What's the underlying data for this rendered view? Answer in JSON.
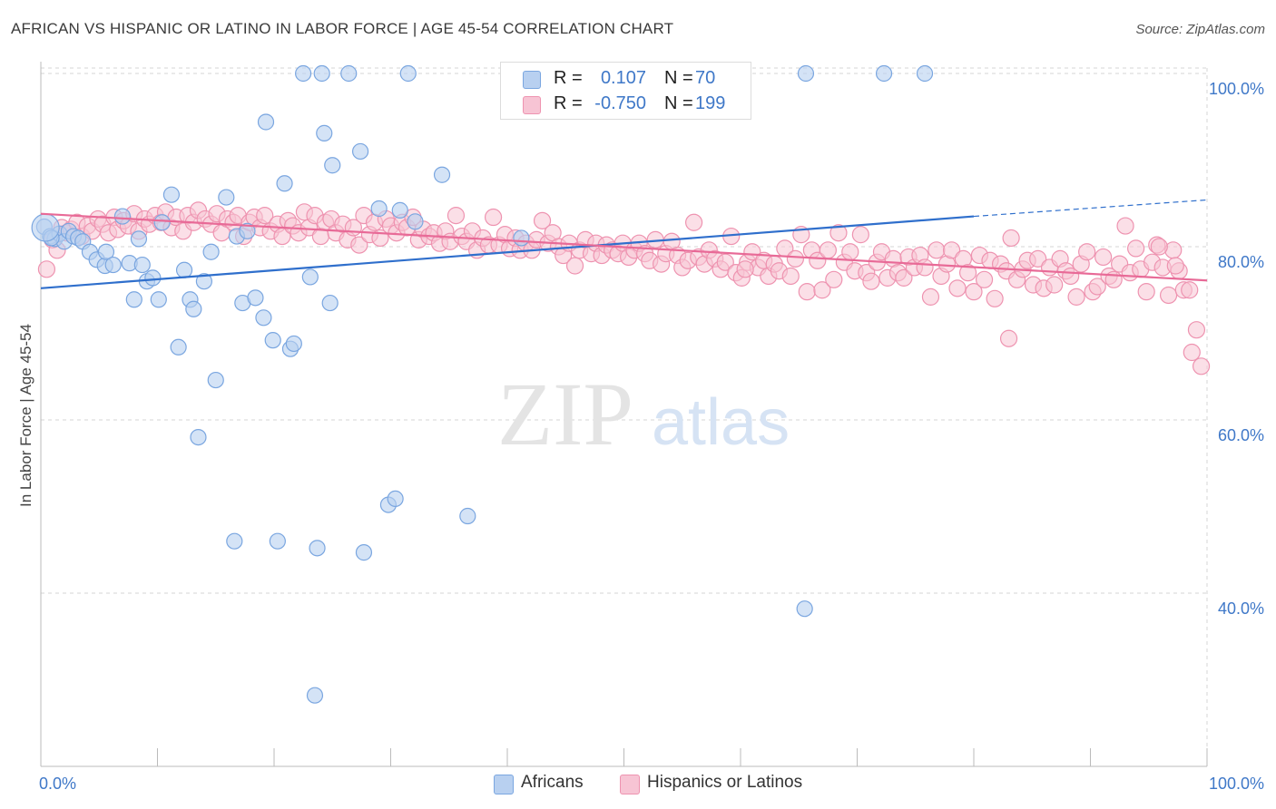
{
  "title": "AFRICAN VS HISPANIC OR LATINO IN LABOR FORCE | AGE 45-54 CORRELATION CHART",
  "source": "Source: ZipAtlas.com",
  "watermark": {
    "zip": "ZIP",
    "atlas": "atlas"
  },
  "colors": {
    "blue_fill": "#b8d0f0",
    "blue_stroke": "#7aa6e0",
    "blue_line": "#2f6fcc",
    "pink_fill": "#f7c4d4",
    "pink_stroke": "#ee93b0",
    "pink_line": "#e86a97",
    "tick_text": "#3f78c8",
    "grid": "#d5d5d5"
  },
  "legend": {
    "series": [
      {
        "r_label": "R =",
        "r_value": "0.107",
        "n_label": "N =",
        "n_value": "70"
      },
      {
        "r_label": "R =",
        "r_value": "-0.750",
        "n_label": "N =",
        "n_value": "199"
      }
    ],
    "bottom": [
      "Africans",
      "Hispanics or Latinos"
    ]
  },
  "chart_data": {
    "type": "scatter",
    "title": "AFRICAN VS HISPANIC OR LATINO IN LABOR FORCE | AGE 45-54 CORRELATION CHART",
    "xlabel": "",
    "ylabel": "In Labor Force | Age 45-54",
    "xlim": [
      0,
      100
    ],
    "ylim": [
      20,
      102
    ],
    "x_tick_labels": [
      "0.0%",
      "100.0%"
    ],
    "y_ticks": [
      {
        "value": 100,
        "label": "100.0%"
      },
      {
        "value": 80,
        "label": "80.0%"
      },
      {
        "value": 60,
        "label": "60.0%"
      },
      {
        "value": 40,
        "label": "40.0%"
      }
    ],
    "grid": "horizontal dashed",
    "legend_position": "top-center",
    "series": [
      {
        "name": "Africans",
        "color": "blue",
        "r": 0.107,
        "n": 70,
        "trend": {
          "x": [
            0,
            80
          ],
          "y": [
            75.2,
            83.5
          ],
          "dashed_extension": {
            "x": [
              80,
              100
            ],
            "y": [
              83.5,
              85.4
            ]
          }
        },
        "points": [
          [
            0.3,
            82.3
          ],
          [
            0.8,
            81.2
          ],
          [
            1.2,
            80.9
          ],
          [
            1.6,
            81.5
          ],
          [
            2.0,
            80.6
          ],
          [
            2.4,
            81.8
          ],
          [
            2.8,
            81.2
          ],
          [
            3.2,
            81.0
          ],
          [
            3.6,
            80.6
          ],
          [
            4.2,
            79.4
          ],
          [
            4.8,
            78.5
          ],
          [
            5.5,
            77.8
          ],
          [
            5.6,
            79.4
          ],
          [
            6.2,
            77.9
          ],
          [
            7.0,
            83.5
          ],
          [
            7.6,
            78.1
          ],
          [
            8.0,
            73.9
          ],
          [
            8.4,
            80.9
          ],
          [
            8.7,
            77.9
          ],
          [
            9.1,
            76.0
          ],
          [
            9.6,
            76.4
          ],
          [
            10.1,
            73.9
          ],
          [
            10.4,
            82.8
          ],
          [
            11.2,
            86.0
          ],
          [
            11.8,
            68.4
          ],
          [
            12.3,
            77.3
          ],
          [
            12.8,
            73.9
          ],
          [
            13.1,
            72.8
          ],
          [
            13.5,
            58.0
          ],
          [
            14.0,
            76.0
          ],
          [
            14.6,
            79.4
          ],
          [
            15.0,
            64.6
          ],
          [
            15.9,
            85.7
          ],
          [
            16.6,
            46.0
          ],
          [
            16.8,
            81.2
          ],
          [
            17.3,
            73.5
          ],
          [
            17.7,
            81.8
          ],
          [
            18.4,
            74.1
          ],
          [
            19.1,
            71.8
          ],
          [
            19.3,
            94.4
          ],
          [
            19.9,
            69.2
          ],
          [
            20.3,
            46.0
          ],
          [
            20.9,
            87.3
          ],
          [
            21.4,
            68.2
          ],
          [
            21.7,
            68.8
          ],
          [
            22.5,
            100.0
          ],
          [
            23.1,
            76.5
          ],
          [
            23.5,
            28.2
          ],
          [
            23.7,
            45.2
          ],
          [
            24.1,
            100.0
          ],
          [
            24.3,
            93.1
          ],
          [
            24.8,
            73.5
          ],
          [
            25.0,
            89.4
          ],
          [
            26.4,
            100.0
          ],
          [
            27.4,
            91.0
          ],
          [
            27.7,
            44.7
          ],
          [
            29.0,
            84.4
          ],
          [
            29.8,
            50.2
          ],
          [
            30.4,
            50.9
          ],
          [
            30.8,
            84.2
          ],
          [
            31.5,
            100.0
          ],
          [
            32.1,
            82.9
          ],
          [
            34.4,
            88.3
          ],
          [
            36.6,
            48.9
          ],
          [
            41.2,
            81.0
          ],
          [
            65.6,
            100.0
          ],
          [
            65.5,
            38.2
          ],
          [
            72.3,
            100.0
          ],
          [
            75.8,
            100.0
          ],
          [
            0.9,
            81.0
          ]
        ],
        "large_points": [
          [
            0.4,
            82.2
          ]
        ]
      },
      {
        "name": "Hispanics or Latinos",
        "color": "pink",
        "r": -0.75,
        "n": 199,
        "trend": {
          "x": [
            0,
            100
          ],
          "y": [
            83.8,
            76.1
          ]
        },
        "points": [
          [
            0.5,
            77.4
          ],
          [
            1.0,
            80.8
          ],
          [
            1.4,
            79.6
          ],
          [
            1.8,
            82.2
          ],
          [
            2.2,
            81.6
          ],
          [
            2.6,
            82.0
          ],
          [
            3.1,
            82.8
          ],
          [
            3.5,
            81.2
          ],
          [
            4.0,
            82.4
          ],
          [
            4.4,
            81.8
          ],
          [
            4.9,
            83.2
          ],
          [
            5.3,
            82.6
          ],
          [
            5.8,
            81.6
          ],
          [
            6.3,
            83.4
          ],
          [
            6.6,
            82.0
          ],
          [
            7.1,
            83.0
          ],
          [
            7.5,
            82.4
          ],
          [
            8.0,
            83.8
          ],
          [
            8.4,
            81.8
          ],
          [
            8.9,
            83.2
          ],
          [
            9.3,
            82.6
          ],
          [
            9.8,
            83.6
          ],
          [
            10.3,
            82.8
          ],
          [
            10.7,
            84.0
          ],
          [
            11.2,
            82.2
          ],
          [
            11.6,
            83.4
          ],
          [
            12.2,
            81.8
          ],
          [
            12.6,
            83.6
          ],
          [
            13.1,
            82.8
          ],
          [
            13.5,
            84.2
          ],
          [
            14.1,
            83.2
          ],
          [
            14.6,
            82.6
          ],
          [
            15.1,
            83.8
          ],
          [
            15.5,
            81.6
          ],
          [
            16.0,
            83.2
          ],
          [
            16.5,
            82.8
          ],
          [
            16.9,
            83.6
          ],
          [
            17.4,
            81.2
          ],
          [
            17.9,
            82.8
          ],
          [
            18.3,
            83.4
          ],
          [
            18.8,
            82.2
          ],
          [
            19.2,
            83.6
          ],
          [
            19.7,
            81.8
          ],
          [
            20.3,
            82.6
          ],
          [
            20.7,
            81.2
          ],
          [
            21.2,
            83.0
          ],
          [
            21.6,
            82.4
          ],
          [
            22.1,
            81.6
          ],
          [
            22.6,
            84.0
          ],
          [
            23.0,
            82.2
          ],
          [
            23.5,
            83.6
          ],
          [
            24.0,
            81.2
          ],
          [
            24.4,
            82.8
          ],
          [
            24.9,
            83.2
          ],
          [
            25.3,
            81.6
          ],
          [
            25.9,
            82.6
          ],
          [
            26.3,
            80.8
          ],
          [
            26.8,
            82.2
          ],
          [
            27.3,
            80.2
          ],
          [
            27.7,
            83.6
          ],
          [
            28.2,
            81.4
          ],
          [
            28.6,
            82.8
          ],
          [
            29.1,
            81.0
          ],
          [
            29.6,
            83.2
          ],
          [
            30.0,
            82.4
          ],
          [
            30.5,
            81.6
          ],
          [
            31.0,
            82.8
          ],
          [
            31.4,
            82.2
          ],
          [
            31.9,
            83.4
          ],
          [
            32.4,
            80.8
          ],
          [
            32.8,
            82.0
          ],
          [
            33.3,
            81.2
          ],
          [
            33.7,
            81.6
          ],
          [
            34.2,
            80.4
          ],
          [
            34.7,
            81.8
          ],
          [
            35.1,
            80.6
          ],
          [
            35.6,
            83.6
          ],
          [
            36.1,
            81.2
          ],
          [
            36.5,
            80.6
          ],
          [
            37.0,
            81.8
          ],
          [
            37.4,
            79.6
          ],
          [
            37.9,
            81.0
          ],
          [
            38.4,
            80.2
          ],
          [
            38.8,
            83.4
          ],
          [
            39.3,
            80.2
          ],
          [
            39.8,
            81.4
          ],
          [
            40.2,
            79.8
          ],
          [
            40.7,
            81.0
          ],
          [
            41.1,
            79.6
          ],
          [
            41.6,
            80.4
          ],
          [
            42.1,
            79.6
          ],
          [
            42.5,
            80.8
          ],
          [
            43.0,
            83.0
          ],
          [
            43.5,
            80.4
          ],
          [
            43.9,
            81.6
          ],
          [
            44.4,
            80.0
          ],
          [
            44.8,
            79.0
          ],
          [
            45.3,
            80.4
          ],
          [
            45.8,
            77.8
          ],
          [
            46.2,
            79.6
          ],
          [
            46.7,
            80.8
          ],
          [
            47.2,
            79.2
          ],
          [
            47.6,
            80.4
          ],
          [
            48.1,
            79.0
          ],
          [
            48.5,
            80.2
          ],
          [
            49.0,
            79.6
          ],
          [
            49.5,
            79.2
          ],
          [
            49.9,
            80.4
          ],
          [
            50.4,
            78.8
          ],
          [
            50.9,
            79.6
          ],
          [
            51.3,
            80.4
          ],
          [
            51.8,
            79.2
          ],
          [
            52.2,
            78.4
          ],
          [
            52.7,
            80.8
          ],
          [
            53.2,
            78.0
          ],
          [
            53.6,
            79.2
          ],
          [
            54.1,
            80.6
          ],
          [
            54.6,
            79.0
          ],
          [
            55.0,
            77.6
          ],
          [
            55.5,
            78.4
          ],
          [
            56.0,
            82.8
          ],
          [
            56.4,
            78.8
          ],
          [
            56.9,
            78.0
          ],
          [
            57.3,
            79.6
          ],
          [
            57.8,
            78.6
          ],
          [
            58.3,
            77.4
          ],
          [
            58.7,
            78.2
          ],
          [
            59.2,
            81.2
          ],
          [
            59.6,
            77.0
          ],
          [
            60.1,
            76.4
          ],
          [
            60.6,
            78.2
          ],
          [
            61.0,
            79.4
          ],
          [
            61.5,
            77.6
          ],
          [
            62.0,
            78.4
          ],
          [
            62.4,
            76.6
          ],
          [
            62.9,
            78.0
          ],
          [
            63.3,
            77.2
          ],
          [
            63.8,
            79.8
          ],
          [
            64.3,
            76.6
          ],
          [
            64.7,
            78.6
          ],
          [
            65.2,
            81.4
          ],
          [
            65.7,
            74.8
          ],
          [
            66.1,
            79.6
          ],
          [
            66.6,
            78.4
          ],
          [
            67.0,
            75.0
          ],
          [
            67.5,
            79.6
          ],
          [
            68.0,
            76.2
          ],
          [
            68.4,
            81.6
          ],
          [
            68.9,
            78.2
          ],
          [
            69.4,
            79.4
          ],
          [
            69.8,
            77.2
          ],
          [
            70.3,
            81.4
          ],
          [
            70.8,
            77.0
          ],
          [
            71.2,
            76.0
          ],
          [
            71.7,
            78.2
          ],
          [
            72.1,
            79.4
          ],
          [
            72.6,
            76.4
          ],
          [
            73.1,
            78.6
          ],
          [
            73.5,
            77.0
          ],
          [
            74.0,
            76.4
          ],
          [
            74.4,
            78.8
          ],
          [
            74.9,
            77.6
          ],
          [
            75.4,
            79.0
          ],
          [
            75.8,
            77.6
          ],
          [
            76.3,
            74.2
          ],
          [
            76.8,
            79.6
          ],
          [
            77.2,
            76.6
          ],
          [
            77.7,
            78.0
          ],
          [
            78.1,
            79.6
          ],
          [
            78.6,
            75.2
          ],
          [
            79.1,
            78.6
          ],
          [
            79.5,
            77.0
          ],
          [
            80.0,
            74.8
          ],
          [
            80.5,
            79.0
          ],
          [
            80.9,
            76.2
          ],
          [
            81.4,
            78.4
          ],
          [
            81.8,
            74.0
          ],
          [
            82.3,
            78.0
          ],
          [
            82.8,
            77.2
          ],
          [
            83.2,
            81.0
          ],
          [
            83.7,
            76.2
          ],
          [
            84.2,
            77.4
          ],
          [
            84.6,
            78.4
          ],
          [
            85.1,
            75.6
          ],
          [
            85.5,
            78.6
          ],
          [
            86.0,
            75.2
          ],
          [
            86.5,
            77.6
          ],
          [
            86.9,
            75.6
          ],
          [
            87.4,
            78.6
          ],
          [
            87.9,
            77.2
          ],
          [
            88.3,
            76.6
          ],
          [
            88.8,
            74.2
          ],
          [
            89.2,
            78.0
          ],
          [
            89.7,
            79.4
          ],
          [
            90.2,
            74.8
          ],
          [
            90.6,
            75.4
          ],
          [
            91.1,
            78.8
          ],
          [
            91.6,
            76.6
          ],
          [
            92.0,
            76.2
          ],
          [
            92.5,
            78.0
          ],
          [
            93.0,
            82.4
          ],
          [
            93.4,
            77.0
          ],
          [
            93.9,
            79.8
          ],
          [
            94.3,
            77.4
          ],
          [
            94.8,
            74.8
          ],
          [
            95.3,
            78.2
          ],
          [
            95.7,
            80.2
          ],
          [
            96.2,
            77.6
          ],
          [
            96.7,
            74.4
          ],
          [
            97.1,
            79.6
          ],
          [
            97.6,
            77.2
          ],
          [
            98.0,
            75.0
          ],
          [
            98.5,
            75.0
          ],
          [
            98.7,
            67.8
          ],
          [
            99.1,
            70.4
          ],
          [
            99.5,
            66.2
          ],
          [
            83.0,
            69.4
          ],
          [
            95.9,
            80.0
          ],
          [
            97.3,
            77.8
          ],
          [
            60.4,
            77.4
          ]
        ]
      }
    ]
  }
}
